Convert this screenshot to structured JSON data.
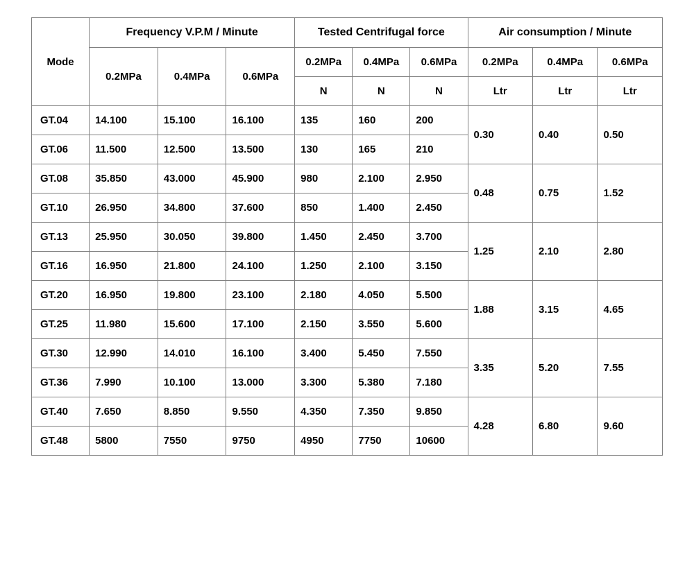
{
  "table": {
    "columns": {
      "mode": "Mode",
      "group_frequency": "Frequency V.P.M / Minute",
      "group_centrifugal": "Tested Centrifugal force",
      "group_air": "Air consumption / Minute",
      "pressures": [
        "0.2MPa",
        "0.4MPa",
        "0.6MPa"
      ],
      "unit_centrifugal": "N",
      "unit_air": "Ltr"
    },
    "rows": [
      {
        "mode": "GT.04",
        "freq": [
          "14.100",
          "15.100",
          "16.100"
        ],
        "cent": [
          "135",
          "160",
          "200"
        ]
      },
      {
        "mode": "GT.06",
        "freq": [
          "11.500",
          "12.500",
          "13.500"
        ],
        "cent": [
          "130",
          "165",
          "210"
        ]
      },
      {
        "mode": "GT.08",
        "freq": [
          "35.850",
          "43.000",
          "45.900"
        ],
        "cent": [
          "980",
          "2.100",
          "2.950"
        ]
      },
      {
        "mode": "GT.10",
        "freq": [
          "26.950",
          "34.800",
          "37.600"
        ],
        "cent": [
          "850",
          "1.400",
          "2.450"
        ]
      },
      {
        "mode": "GT.13",
        "freq": [
          "25.950",
          "30.050",
          "39.800"
        ],
        "cent": [
          "1.450",
          "2.450",
          "3.700"
        ]
      },
      {
        "mode": "GT.16",
        "freq": [
          "16.950",
          "21.800",
          "24.100"
        ],
        "cent": [
          "1.250",
          "2.100",
          "3.150"
        ]
      },
      {
        "mode": "GT.20",
        "freq": [
          "16.950",
          "19.800",
          "23.100"
        ],
        "cent": [
          "2.180",
          "4.050",
          "5.500"
        ]
      },
      {
        "mode": "GT.25",
        "freq": [
          "11.980",
          "15.600",
          "17.100"
        ],
        "cent": [
          "2.150",
          "3.550",
          "5.600"
        ]
      },
      {
        "mode": "GT.30",
        "freq": [
          "12.990",
          "14.010",
          "16.100"
        ],
        "cent": [
          "3.400",
          "5.450",
          "7.550"
        ]
      },
      {
        "mode": "GT.36",
        "freq": [
          "7.990",
          "10.100",
          "13.000"
        ],
        "cent": [
          "3.300",
          "5.380",
          "7.180"
        ]
      },
      {
        "mode": "GT.40",
        "freq": [
          "7.650",
          "8.850",
          "9.550"
        ],
        "cent": [
          "4.350",
          "7.350",
          "9.850"
        ]
      },
      {
        "mode": "GT.48",
        "freq": [
          "5800",
          "7550",
          "9750"
        ],
        "cent": [
          "4950",
          "7750",
          "10600"
        ]
      }
    ],
    "air_groups": [
      [
        "0.30",
        "0.40",
        "0.50"
      ],
      [
        "0.48",
        "0.75",
        "1.52"
      ],
      [
        "1.25",
        "2.10",
        "2.80"
      ],
      [
        "1.88",
        "3.15",
        "4.65"
      ],
      [
        "3.35",
        "5.20",
        "7.55"
      ],
      [
        "4.28",
        "6.80",
        "9.60"
      ]
    ],
    "style": {
      "border_color": "#808080",
      "background": "#ffffff",
      "font_family": "Arial",
      "header_fontsize": 16,
      "cell_fontsize": 15,
      "font_weight": "bold",
      "text_color": "#000000"
    }
  }
}
